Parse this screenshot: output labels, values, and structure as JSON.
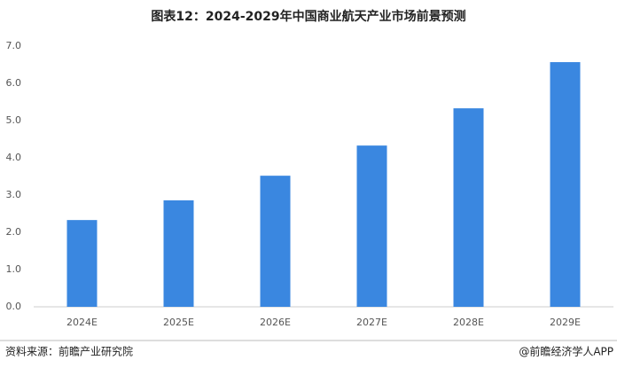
{
  "chart_data": {
    "type": "bar",
    "title": "图表12：2024-2029年中国商业航天产业市场前景预测",
    "categories": [
      "2024E",
      "2025E",
      "2026E",
      "2027E",
      "2028E",
      "2029E"
    ],
    "values": [
      2.33,
      2.86,
      3.52,
      4.33,
      5.33,
      6.57
    ],
    "color": "#3a87e0",
    "ylim": [
      0,
      7
    ],
    "yticks": [
      {
        "value": 0,
        "label": "0.0"
      },
      {
        "value": 1,
        "label": "1.0"
      },
      {
        "value": 2,
        "label": "2.0"
      },
      {
        "value": 3,
        "label": "3.0"
      },
      {
        "value": 4,
        "label": "4.0"
      },
      {
        "value": 5,
        "label": "5.0"
      },
      {
        "value": 6,
        "label": "6.0"
      },
      {
        "value": 7,
        "label": "7.0"
      }
    ],
    "grid": false,
    "source": "资料来源：前瞻产业研究院",
    "credit": "@前瞻经济学人APP"
  }
}
